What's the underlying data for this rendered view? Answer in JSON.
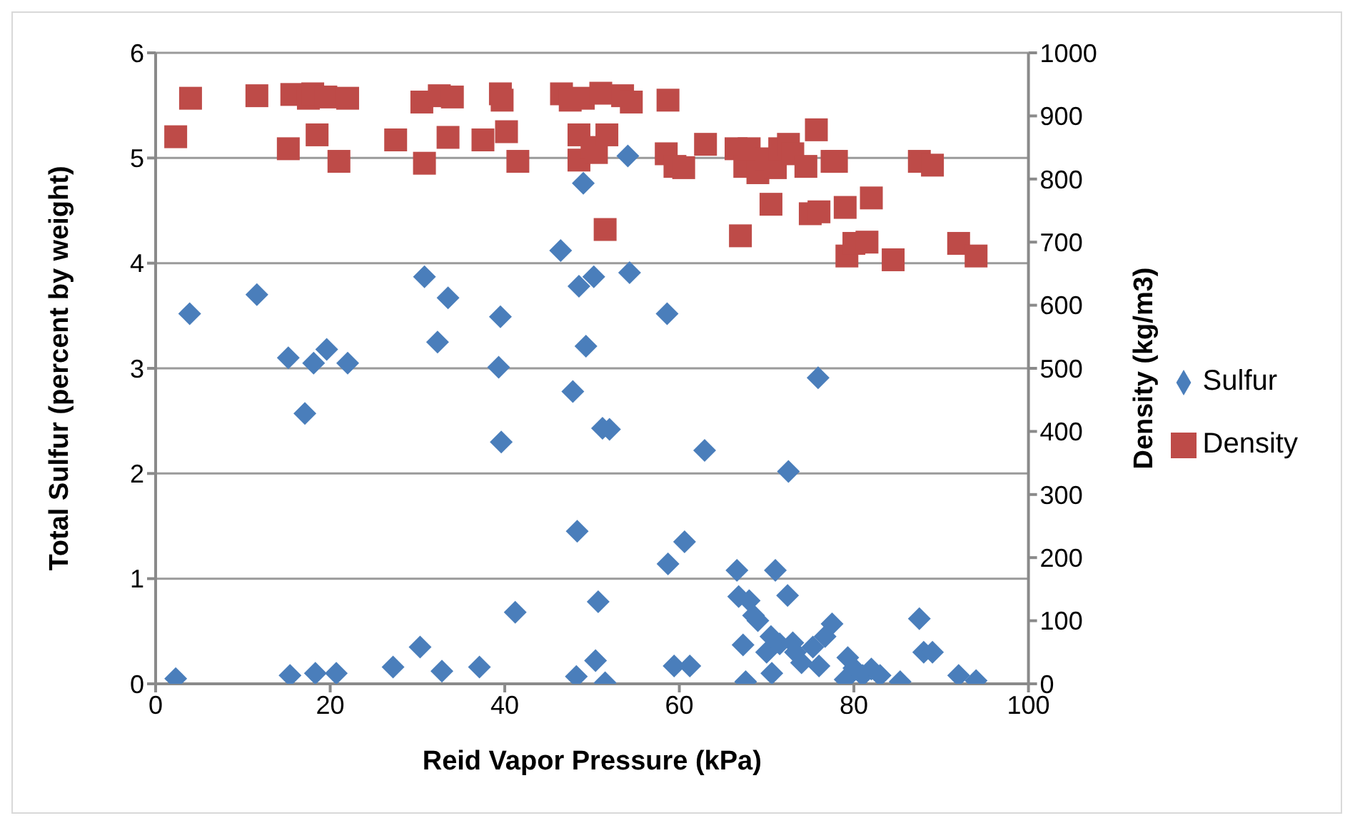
{
  "chart_data": {
    "type": "scatter",
    "xlabel": "Reid Vapor Pressure (kPa)",
    "ylabel": "Total Sulfur (percent by weight)",
    "y2label": "Density (kg/m3)",
    "xlim": [
      0,
      100
    ],
    "xticks": [
      0,
      20,
      40,
      60,
      80,
      100
    ],
    "ylim": [
      0,
      6
    ],
    "yticks": [
      0,
      1,
      2,
      3,
      4,
      5,
      6
    ],
    "y2lim": [
      0,
      1000
    ],
    "y2ticks": [
      0,
      100,
      200,
      300,
      400,
      500,
      600,
      700,
      800,
      900,
      1000
    ],
    "grid": "y",
    "legend": "right",
    "series": [
      {
        "name": "Sulfur",
        "color": "#4a7ebb",
        "marker": "diamond",
        "x": [
          2.3,
          3.9,
          11.6,
          15.2,
          15.4,
          17.1,
          18.1,
          18.3,
          19.6,
          20.7,
          22,
          27.2,
          30.3,
          30.8,
          32.3,
          32.8,
          33.5,
          37.1,
          39.3,
          39.5,
          39.6,
          41.2,
          46.4,
          47.8,
          48.2,
          48.3,
          48.5,
          49,
          49.3,
          50.2,
          50.4,
          50.7,
          51.2,
          51.5,
          52,
          54.3,
          54.1,
          58.6,
          58.7,
          59.4,
          60.6,
          61.2,
          62.9,
          66.6,
          66.8,
          67.3,
          67.6,
          68,
          68.5,
          69,
          70,
          70.6,
          71,
          70.5,
          71.5,
          72.4,
          72.5,
          73,
          73.3,
          74,
          75.3,
          75.9,
          76,
          76.7,
          77.5,
          79,
          79.3,
          80,
          81,
          82,
          83,
          85.3,
          87.5,
          88,
          89,
          92,
          94
        ],
        "values": [
          0.05,
          3.52,
          3.7,
          3.1,
          0.08,
          2.57,
          3.05,
          0.1,
          3.18,
          0.1,
          3.05,
          0.16,
          0.35,
          3.87,
          3.25,
          0.12,
          3.67,
          0.16,
          3.01,
          3.49,
          2.3,
          0.68,
          4.12,
          2.78,
          0.07,
          1.45,
          3.78,
          4.76,
          3.21,
          3.87,
          0.22,
          0.78,
          2.43,
          0.01,
          2.42,
          3.91,
          5.02,
          3.52,
          1.14,
          0.17,
          1.35,
          0.17,
          2.22,
          1.08,
          0.83,
          0.37,
          0.02,
          0.79,
          0.65,
          0.6,
          0.3,
          0.1,
          1.08,
          0.45,
          0.38,
          0.84,
          2.02,
          0.39,
          0.3,
          0.2,
          0.35,
          2.91,
          0.17,
          0.45,
          0.57,
          0.04,
          0.25,
          0.15,
          0.08,
          0.14,
          0.08,
          0.02,
          0.62,
          0.3,
          0.3,
          0.08,
          0.03
        ]
      },
      {
        "name": "Density",
        "color": "#be4b48",
        "marker": "square",
        "axis": "y2",
        "x": [
          2.3,
          4,
          11.6,
          15.2,
          15.6,
          17.5,
          18,
          18.5,
          19.5,
          21,
          22,
          27.5,
          30.5,
          30.8,
          32.5,
          33.5,
          34,
          37.5,
          39.5,
          39.7,
          40.2,
          41.5,
          46.5,
          47.5,
          48.5,
          48.5,
          49,
          50,
          50.5,
          51,
          51.5,
          51.7,
          53.5,
          54.5,
          58.5,
          58.7,
          59.5,
          60.5,
          63,
          66.5,
          67,
          67.5,
          68,
          69,
          70,
          70.5,
          71,
          71.5,
          72.5,
          73,
          74.5,
          75,
          75.7,
          76,
          77.5,
          78,
          79,
          79.2,
          80,
          81.5,
          82,
          84.5,
          87.5,
          89,
          92,
          94
        ],
        "values": [
          867,
          928,
          932,
          848,
          934,
          928,
          935,
          870,
          930,
          828,
          928,
          862,
          922,
          825,
          932,
          866,
          930,
          862,
          935,
          925,
          875,
          828,
          935,
          925,
          870,
          830,
          928,
          850,
          842,
          936,
          720,
          870,
          932,
          922,
          840,
          925,
          820,
          818,
          855,
          848,
          710,
          820,
          848,
          810,
          832,
          760,
          818,
          848,
          855,
          840,
          820,
          745,
          878,
          748,
          828,
          828,
          755,
          678,
          698,
          700,
          770,
          672,
          828,
          822,
          698,
          678
        ]
      }
    ]
  }
}
